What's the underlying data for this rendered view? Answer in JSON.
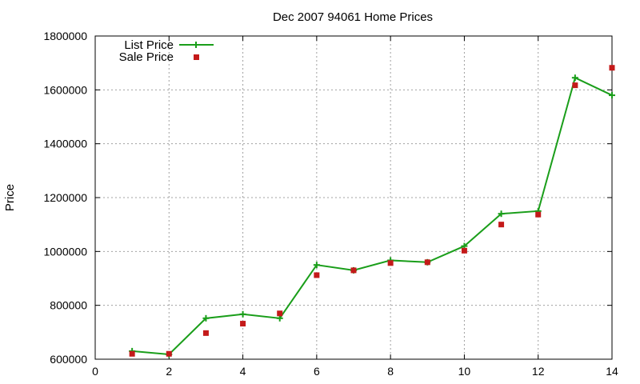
{
  "chart_data": {
    "type": "line",
    "title": "Dec 2007 94061 Home Prices",
    "xlabel": "",
    "ylabel": "Price",
    "xlim": [
      0,
      14
    ],
    "ylim": [
      600000,
      1800000
    ],
    "x_ticks": [
      0,
      2,
      4,
      6,
      8,
      10,
      12,
      14
    ],
    "y_ticks": [
      600000,
      800000,
      1000000,
      1200000,
      1400000,
      1600000,
      1800000
    ],
    "grid": true,
    "legend_position": "top-left",
    "series": [
      {
        "name": "List Price",
        "style": "line+cross",
        "color": "#1a9e1a",
        "x": [
          1,
          2,
          3,
          4,
          5,
          6,
          7,
          8,
          9,
          10,
          11,
          12,
          13,
          14
        ],
        "y": [
          630000,
          618000,
          752000,
          767000,
          752000,
          950000,
          930000,
          967000,
          960000,
          1020000,
          1140000,
          1150000,
          1645000,
          1580000
        ]
      },
      {
        "name": "Sale Price",
        "style": "square-points",
        "color": "#c41a1a",
        "x": [
          1,
          2,
          3,
          4,
          5,
          6,
          7,
          8,
          9,
          10,
          11,
          12,
          13,
          14
        ],
        "y": [
          620000,
          620000,
          697000,
          732000,
          770000,
          912000,
          930000,
          957000,
          960000,
          1003000,
          1100000,
          1137000,
          1617000,
          1682000
        ]
      }
    ]
  }
}
